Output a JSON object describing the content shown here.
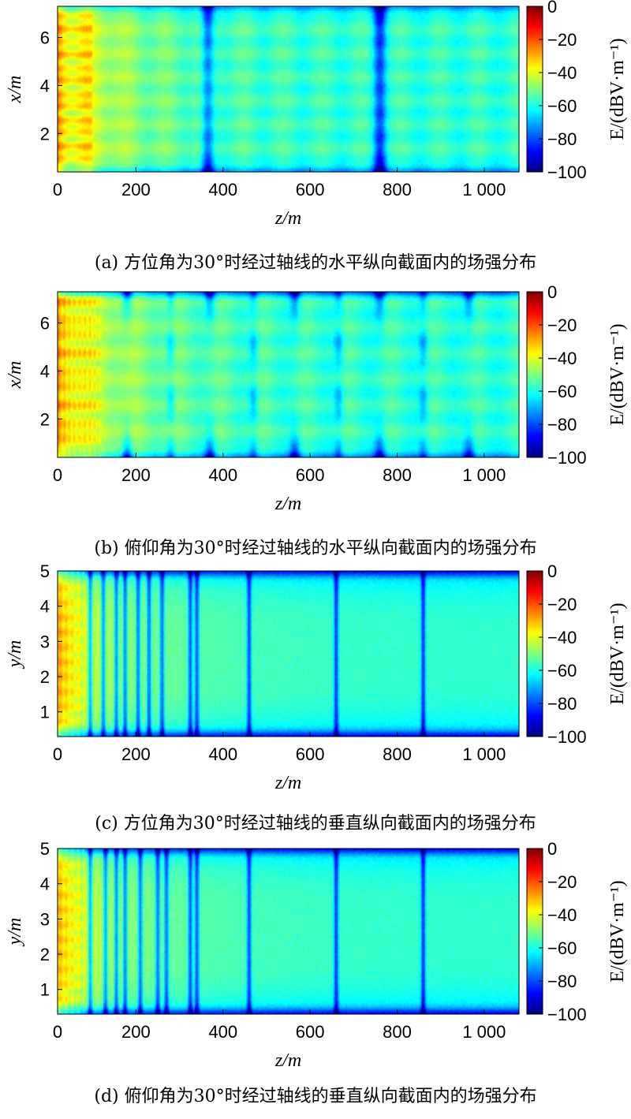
{
  "colorscale": {
    "stops": [
      "#00007f",
      "#0000ff",
      "#007fff",
      "#00ffff",
      "#7fff7f",
      "#ffff00",
      "#ff7f00",
      "#ff0000",
      "#7f0000"
    ],
    "range": [
      -100,
      0
    ],
    "ticks": [
      "0",
      "−20",
      "−40",
      "−60",
      "−80",
      "−100"
    ],
    "label": "E/(dBV·m⁻¹)"
  },
  "chart_data": [
    {
      "type": "heatmap",
      "caption": "(a) 方位角为30°时经过轴线的水平纵向截面内的场强分布",
      "xlabel": "z/m",
      "ylabel": "x/m",
      "xlim": [
        20,
        1080
      ],
      "ylim": [
        0.4,
        7.3
      ],
      "xticks": [
        {
          "v": 20,
          "t": "0"
        },
        {
          "v": 200,
          "t": "200"
        },
        {
          "v": 400,
          "t": "400"
        },
        {
          "v": 600,
          "t": "600"
        },
        {
          "v": 800,
          "t": "800"
        },
        {
          "v": 1000,
          "t": "1 000"
        }
      ],
      "yticks": [
        {
          "v": 2,
          "t": "2"
        },
        {
          "v": 4,
          "t": "4"
        },
        {
          "v": 6,
          "t": "6"
        }
      ],
      "pattern": "horizontal-az",
      "colorbar_label": "E/(dBV·m⁻¹)"
    },
    {
      "type": "heatmap",
      "caption": "(b) 俯仰角为30°时经过轴线的水平纵向截面内的场强分布",
      "xlabel": "z/m",
      "ylabel": "x/m",
      "xlim": [
        20,
        1080
      ],
      "ylim": [
        0.4,
        7.3
      ],
      "xticks": [
        {
          "v": 20,
          "t": "0"
        },
        {
          "v": 200,
          "t": "200"
        },
        {
          "v": 400,
          "t": "400"
        },
        {
          "v": 600,
          "t": "600"
        },
        {
          "v": 800,
          "t": "800"
        },
        {
          "v": 1000,
          "t": "1 000"
        }
      ],
      "yticks": [
        {
          "v": 2,
          "t": "2"
        },
        {
          "v": 4,
          "t": "4"
        },
        {
          "v": 6,
          "t": "6"
        }
      ],
      "pattern": "horizontal-el",
      "colorbar_label": "E/(dBV·m⁻¹)"
    },
    {
      "type": "heatmap",
      "caption": "(c) 方位角为30°时经过轴线的垂直纵向截面内的场强分布",
      "xlabel": "z/m",
      "ylabel": "y/m",
      "xlim": [
        20,
        1080
      ],
      "ylim": [
        0.3,
        5.0
      ],
      "xticks": [
        {
          "v": 20,
          "t": "0"
        },
        {
          "v": 200,
          "t": "200"
        },
        {
          "v": 400,
          "t": "400"
        },
        {
          "v": 600,
          "t": "600"
        },
        {
          "v": 800,
          "t": "800"
        },
        {
          "v": 1000,
          "t": "1 000"
        }
      ],
      "yticks": [
        {
          "v": 1,
          "t": "1"
        },
        {
          "v": 2,
          "t": "2"
        },
        {
          "v": 3,
          "t": "3"
        },
        {
          "v": 4,
          "t": "4"
        },
        {
          "v": 5,
          "t": "5"
        }
      ],
      "pattern": "vertical-az",
      "colorbar_label": "E/(dBV·m⁻¹)"
    },
    {
      "type": "heatmap",
      "caption": "(d) 俯仰角为30°时经过轴线的垂直纵向截面内的场强分布",
      "xlabel": "z/m",
      "ylabel": "y/m",
      "xlim": [
        20,
        1080
      ],
      "ylim": [
        0.3,
        5.0
      ],
      "xticks": [
        {
          "v": 20,
          "t": "0"
        },
        {
          "v": 200,
          "t": "200"
        },
        {
          "v": 400,
          "t": "400"
        },
        {
          "v": 600,
          "t": "600"
        },
        {
          "v": 800,
          "t": "800"
        },
        {
          "v": 1000,
          "t": "1 000"
        }
      ],
      "yticks": [
        {
          "v": 1,
          "t": "1"
        },
        {
          "v": 2,
          "t": "2"
        },
        {
          "v": 3,
          "t": "3"
        },
        {
          "v": 4,
          "t": "4"
        },
        {
          "v": 5,
          "t": "5"
        }
      ],
      "pattern": "vertical-el",
      "colorbar_label": "E/(dBV·m⁻¹)"
    }
  ]
}
